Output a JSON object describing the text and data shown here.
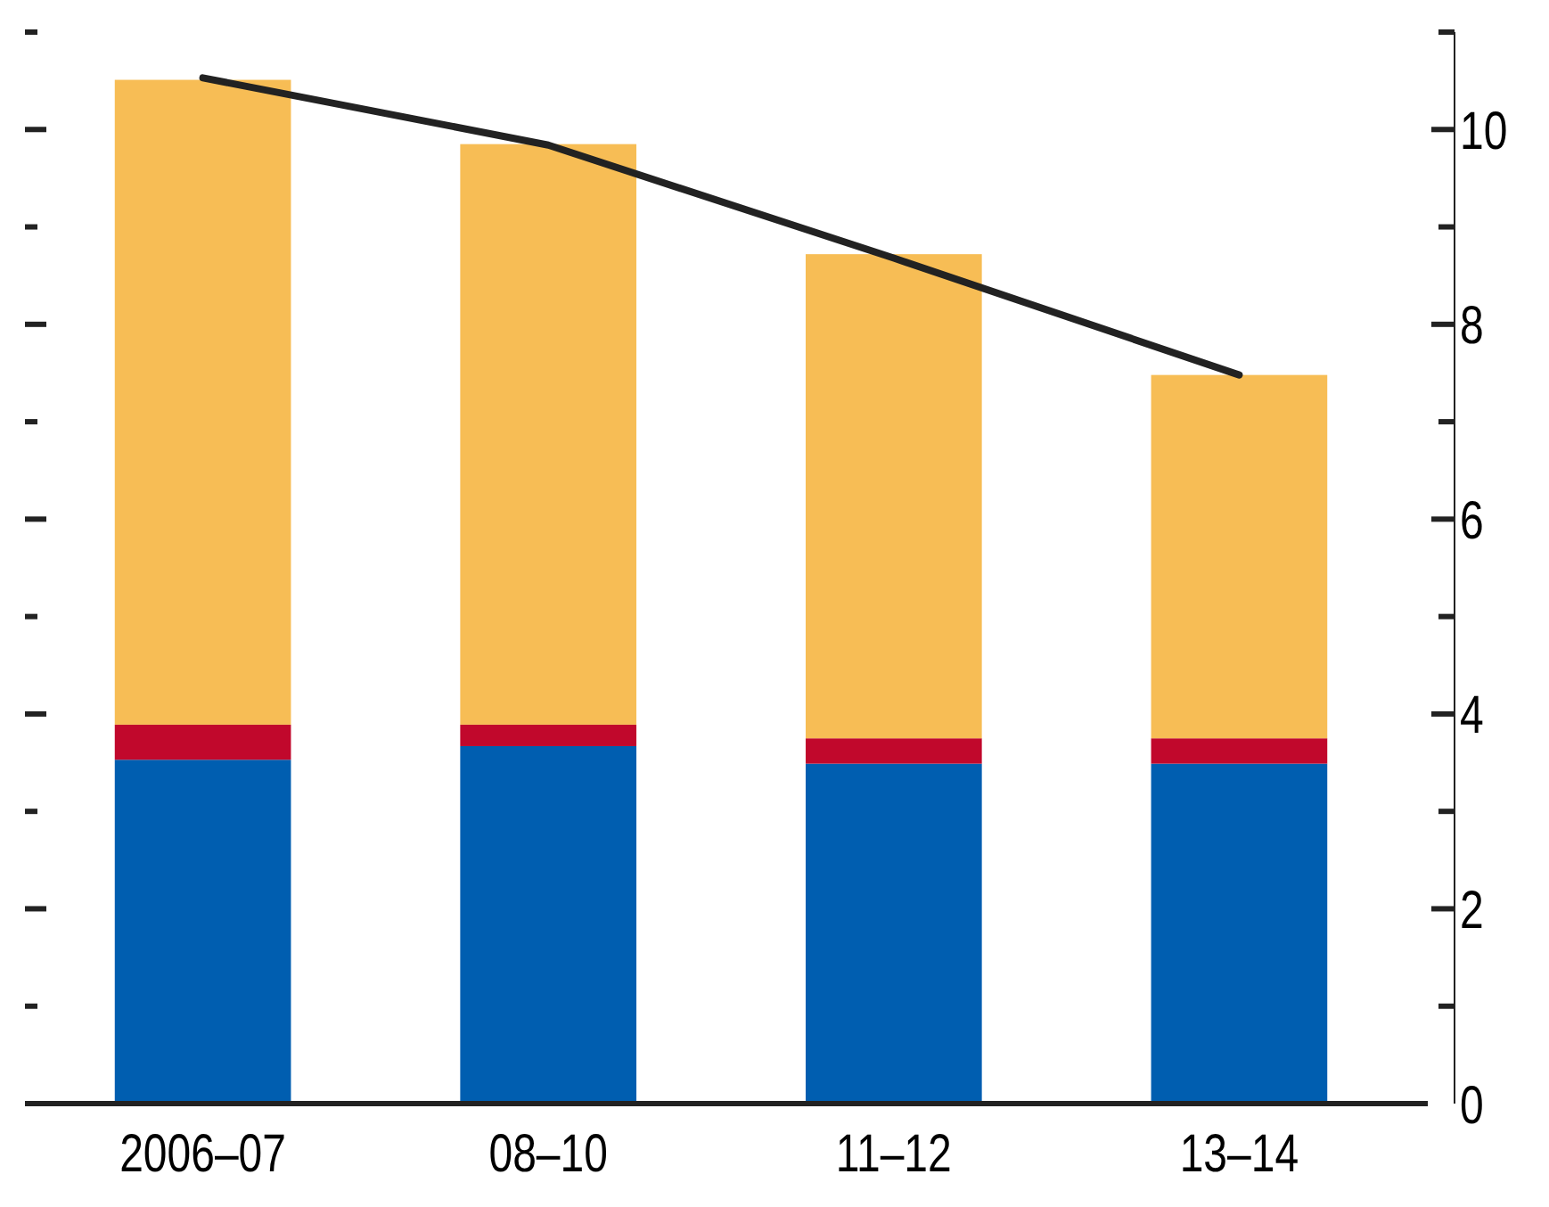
{
  "chart_data": {
    "type": "bar",
    "stacked": true,
    "categories": [
      "2006–07",
      "08–10",
      "11–12",
      "13–14"
    ],
    "series": [
      {
        "color": "#005eb0",
        "values": [
          3.53,
          3.67,
          3.49,
          3.49
        ]
      },
      {
        "color": "#c1082c",
        "values": [
          0.36,
          0.22,
          0.26,
          0.26
        ]
      },
      {
        "color": "#f7bd55",
        "values": [
          6.62,
          5.96,
          4.97,
          3.73
        ]
      },
      {
        "type": "line",
        "color": "#222222",
        "values": [
          10.53,
          9.84,
          8.68,
          7.48
        ]
      }
    ],
    "ylim": [
      0,
      11
    ],
    "yticks": [
      0,
      {
        "value": 1,
        "label": null
      },
      2,
      {
        "value": 3,
        "label": null
      },
      4,
      {
        "value": 5,
        "label": null
      },
      6,
      {
        "value": 7,
        "label": null
      },
      8,
      {
        "value": 9,
        "label": null
      },
      10,
      {
        "value": 11,
        "label": null
      }
    ]
  }
}
